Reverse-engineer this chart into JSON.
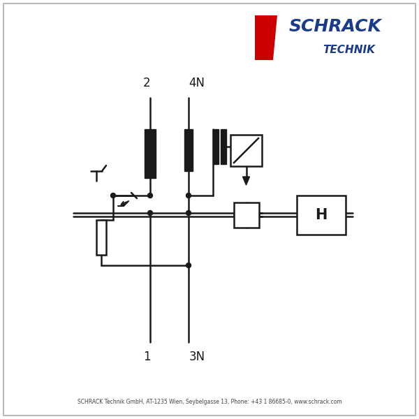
{
  "bg_color": "#ffffff",
  "line_color": "#1a1a1a",
  "border_color": "#aaaaaa",
  "schrack_blue": "#1a3a8a",
  "schrack_blue2": "#003399",
  "schrack_red": "#cc0000",
  "footer_text": "SCHRACK Technik GmbH, AT-1235 Wien, Seybelgasse 13, Phone: +43 1 86685-0, www.schrack.com",
  "label_2": "2",
  "label_4N": "4N",
  "label_1": "1",
  "label_3N": "3N",
  "label_H": "H"
}
